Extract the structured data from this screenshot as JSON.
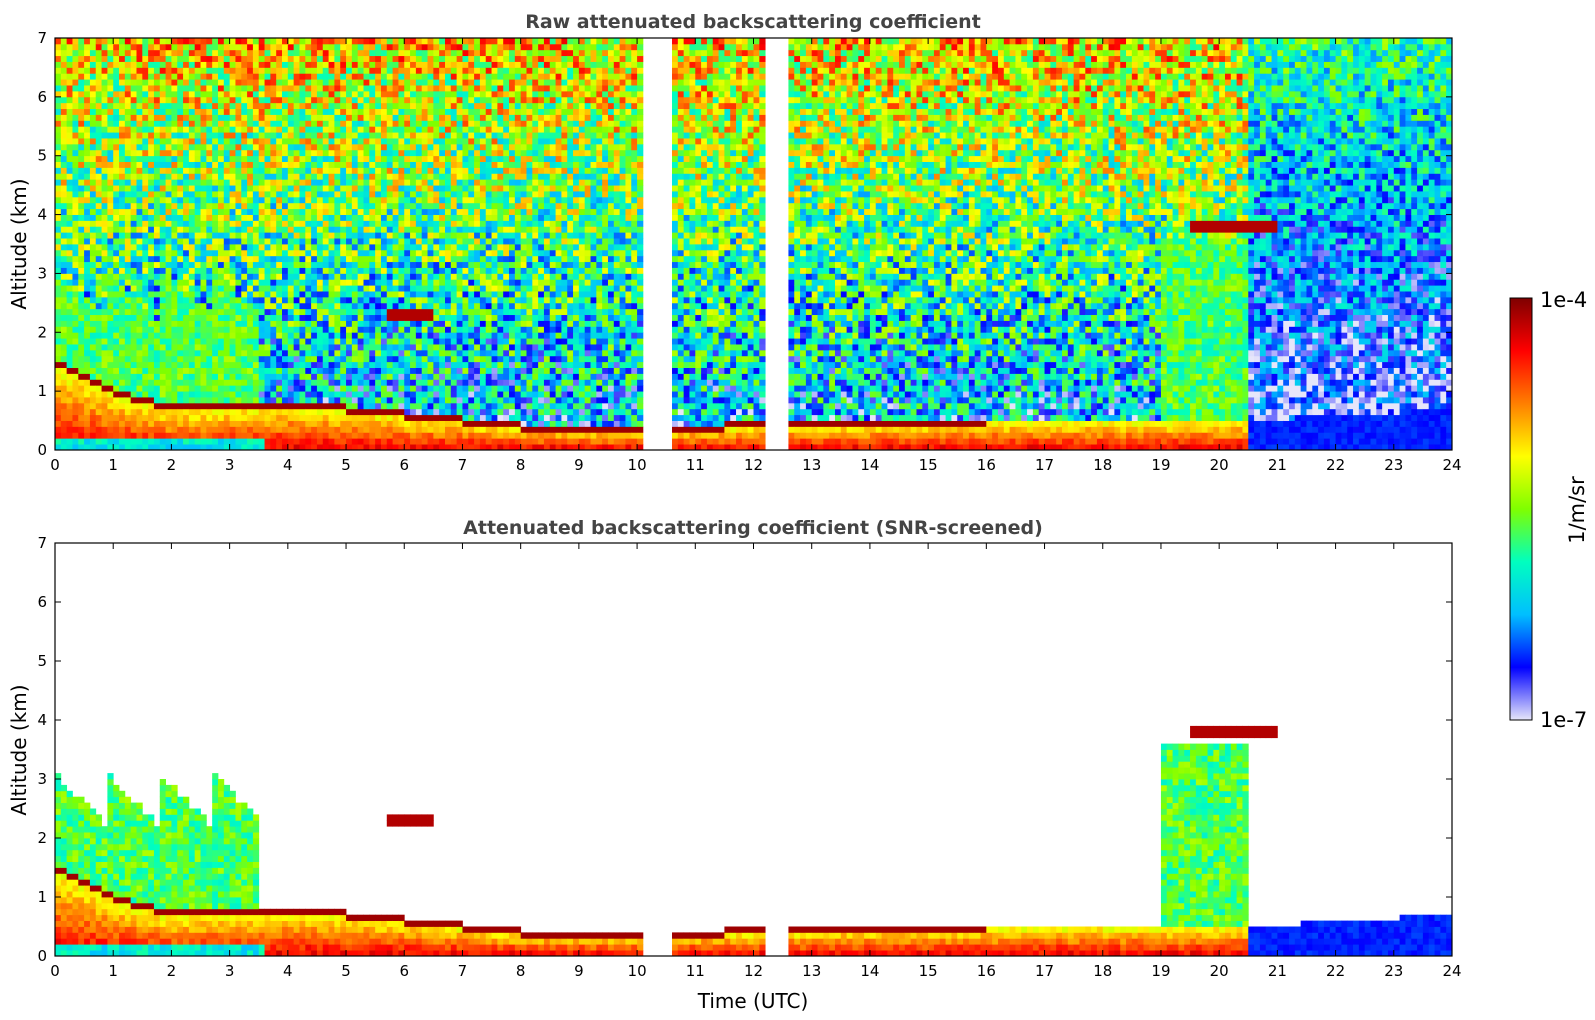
{
  "chart_data": [
    {
      "type": "heatmap",
      "title": "Raw attenuated backscattering coefficient",
      "xlabel": "",
      "ylabel": "Altitude (km)",
      "xlim": [
        0,
        24
      ],
      "ylim": [
        0,
        7
      ],
      "xticks": [
        "0",
        "1",
        "2",
        "3",
        "4",
        "5",
        "6",
        "7",
        "8",
        "9",
        "10",
        "11",
        "12",
        "13",
        "14",
        "15",
        "16",
        "17",
        "18",
        "19",
        "20",
        "21",
        "22",
        "23",
        "24"
      ],
      "yticks": [
        "0",
        "1",
        "2",
        "3",
        "4",
        "5",
        "6",
        "7"
      ],
      "data_gaps_utc": [
        [
          10.15,
          10.55
        ],
        [
          12.2,
          12.55
        ]
      ],
      "features": {
        "boundary_layer_top_km": [
          [
            0,
            1.5
          ],
          [
            1,
            1.0
          ],
          [
            2,
            0.7
          ],
          [
            4,
            0.8
          ],
          [
            8,
            0.4
          ],
          [
            10,
            0.35
          ],
          [
            13,
            0.45
          ],
          [
            16,
            0.5
          ],
          [
            19,
            0.5
          ],
          [
            20.5,
            0.5
          ],
          [
            24,
            0.7
          ]
        ],
        "elevated_layers": [
          {
            "t": [
              5.7,
              6.5
            ],
            "alt_km": 2.3
          },
          {
            "t": [
              19.5,
              21.0
            ],
            "alt_km": 3.8
          }
        ]
      }
    },
    {
      "type": "heatmap",
      "title": "Attenuated backscattering coefficient (SNR-screened)",
      "xlabel": "Time (UTC)",
      "ylabel": "Altitude (km)",
      "xlim": [
        0,
        24
      ],
      "ylim": [
        0,
        7
      ],
      "xticks": [
        "0",
        "1",
        "2",
        "3",
        "4",
        "5",
        "6",
        "7",
        "8",
        "9",
        "10",
        "11",
        "12",
        "13",
        "14",
        "15",
        "16",
        "17",
        "18",
        "19",
        "20",
        "21",
        "22",
        "23",
        "24"
      ],
      "yticks": [
        "0",
        "1",
        "2",
        "3",
        "4",
        "5",
        "6",
        "7"
      ],
      "data_gaps_utc": [
        [
          10.15,
          10.55
        ],
        [
          12.2,
          12.55
        ]
      ]
    }
  ],
  "colorbar": {
    "label": "1/m/sr",
    "max_label": "1e-4",
    "min_label": "1e-7",
    "colormap": "jet",
    "colors": [
      "#e6e6fa",
      "#0000ff",
      "#00bfff",
      "#00ffbf",
      "#7fff00",
      "#ffff00",
      "#ff7f00",
      "#ff0000",
      "#7f0000"
    ]
  }
}
